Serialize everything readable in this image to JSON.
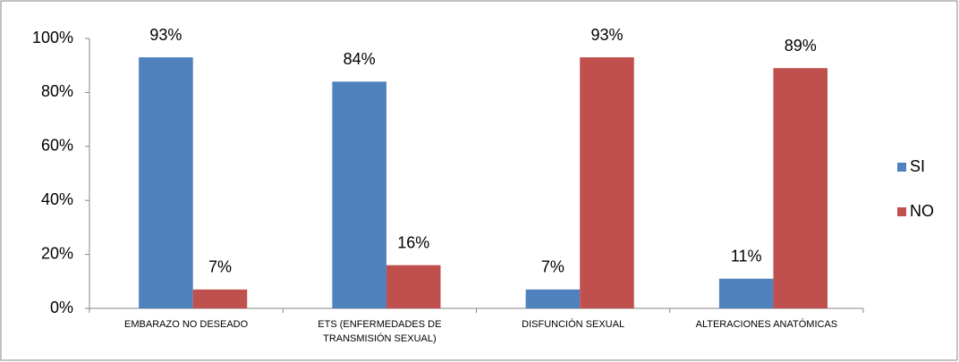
{
  "chart_data": {
    "type": "bar",
    "categories": [
      "EMBARAZO NO DESEADO",
      "ETS (ENFERMEDADES DE TRANSMISIÓN SEXUAL)",
      "DISFUNCIÓN SEXUAL",
      "ALTERACIONES ANATÓMICAS"
    ],
    "series": [
      {
        "name": "SI",
        "color": "#4f81bd",
        "values": [
          93,
          84,
          7,
          11
        ],
        "value_labels": [
          "93%",
          "84%",
          "7%",
          "11%"
        ]
      },
      {
        "name": "NO",
        "color": "#c0504d",
        "values": [
          7,
          16,
          93,
          89
        ],
        "value_labels": [
          "7%",
          "16%",
          "93%",
          "89%"
        ]
      }
    ],
    "ylim": [
      0,
      100
    ],
    "yticks": [
      {
        "value": 0,
        "label": "0%"
      },
      {
        "value": 20,
        "label": "20%"
      },
      {
        "value": 40,
        "label": "40%"
      },
      {
        "value": 60,
        "label": "60%"
      },
      {
        "value": 80,
        "label": "80%"
      },
      {
        "value": 100,
        "label": "100%"
      }
    ],
    "legend": "right"
  }
}
